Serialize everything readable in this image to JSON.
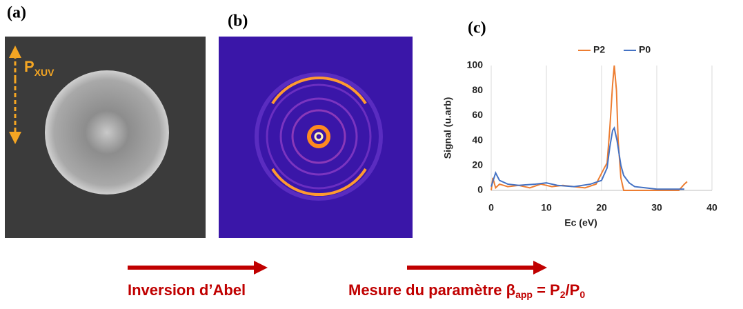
{
  "panels": [
    {
      "label": "(a)"
    },
    {
      "label": "(b)"
    },
    {
      "label": "(c)"
    }
  ],
  "polarization": {
    "main": "P",
    "sub": "XUV"
  },
  "chart_data": {
    "type": "line",
    "x_label": "Ec (eV)",
    "y_label": "Signal (u.arb)",
    "xlim": [
      0,
      40
    ],
    "xticks": [
      0,
      10,
      20,
      30,
      40
    ],
    "ylim": [
      0,
      100
    ],
    "yticks": [
      0,
      20,
      40,
      60,
      80,
      100
    ],
    "grid": "x",
    "legend": "top",
    "series": [
      {
        "name": "P2",
        "color": "#ed7d31",
        "x": [
          0,
          0.3,
          0.8,
          1.5,
          3,
          5,
          7,
          9,
          11,
          13,
          15,
          17,
          19,
          19.8,
          20.5,
          21,
          21.5,
          22,
          22.3,
          22.7,
          23,
          23.5,
          24,
          26,
          30,
          34,
          35,
          35.5
        ],
        "values": [
          0,
          10,
          2,
          5,
          3,
          4,
          2,
          5,
          3,
          4,
          3,
          2,
          5,
          12,
          18,
          22,
          50,
          85,
          100,
          80,
          40,
          10,
          0,
          0,
          0,
          0,
          5,
          7
        ]
      },
      {
        "name": "P0",
        "color": "#4472c4",
        "x": [
          0,
          0.8,
          1.5,
          3,
          5,
          8,
          10,
          12,
          15,
          18,
          20,
          21,
          21.5,
          22,
          22.3,
          22.8,
          23.5,
          24,
          25,
          26,
          28,
          30,
          33,
          35
        ],
        "values": [
          3,
          14,
          8,
          5,
          4,
          5,
          6,
          4,
          3,
          5,
          8,
          18,
          35,
          48,
          50,
          40,
          20,
          12,
          6,
          3,
          2,
          1,
          1,
          1
        ]
      }
    ]
  },
  "captions": [
    {
      "segments": [
        {
          "text": "Inversion d’Abel"
        }
      ]
    },
    {
      "segments": [
        {
          "text": "Mesure du paramètre β"
        },
        {
          "text": "app",
          "sub": true
        },
        {
          "text": " = P"
        },
        {
          "text": "2",
          "sub": true
        },
        {
          "text": "/P"
        },
        {
          "text": "0",
          "sub": true
        }
      ]
    }
  ]
}
